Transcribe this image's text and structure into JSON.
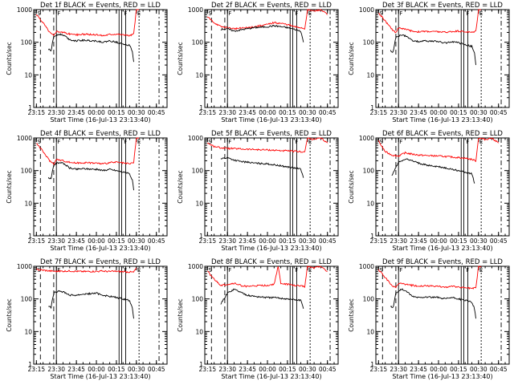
{
  "figure": {
    "ylabel": "Counts/sec",
    "xlabel": "Start Time (16-Jul-13 23:13:40)",
    "x_ticks": [
      "23:15",
      "23:30",
      "23:45",
      "00:00",
      "00:15",
      "00:30",
      "00:45"
    ],
    "y_ticks": [
      "1",
      "10",
      "100",
      "1000"
    ],
    "series_colors": {
      "events": "#000000",
      "lld": "#ff0000"
    }
  },
  "chart_data": [
    {
      "type": "line",
      "title": "Det 1f BLACK = Events, RED = LLD",
      "ylim": [
        1,
        1000
      ],
      "yscale": "log",
      "markers": [
        {
          "label": "S",
          "x": "23:15"
        },
        {
          "label": "F",
          "x": "23:30"
        },
        {
          "label": "F",
          "x": "00:20"
        },
        {
          "label": "E",
          "x": "00:30"
        }
      ],
      "series": [
        {
          "role": "lld",
          "x": [
            "23:15",
            "23:20",
            "23:25",
            "23:28",
            "23:30",
            "23:35",
            "23:40",
            "23:45",
            "23:50",
            "00:00",
            "00:05",
            "00:10",
            "00:15",
            "00:20",
            "00:25",
            "00:28",
            "00:30",
            "00:32"
          ],
          "y": [
            700,
            400,
            200,
            160,
            220,
            200,
            180,
            170,
            175,
            170,
            160,
            175,
            180,
            170,
            160,
            180,
            1000,
            1000
          ]
        },
        {
          "role": "events",
          "x": [
            "23:24",
            "23:26",
            "23:28",
            "23:32",
            "23:36",
            "23:40",
            "23:45",
            "23:50",
            "00:00",
            "00:05",
            "00:10",
            "00:15",
            "00:20",
            "00:25",
            "00:27",
            "00:28"
          ],
          "y": [
            60,
            55,
            150,
            180,
            160,
            120,
            110,
            115,
            110,
            100,
            110,
            100,
            90,
            80,
            50,
            25
          ]
        }
      ]
    },
    {
      "type": "line",
      "title": "Det 2f BLACK = Events, RED = LLD",
      "ylim": [
        1,
        1000
      ],
      "yscale": "log",
      "markers": [
        {
          "label": "S",
          "x": "23:15"
        },
        {
          "label": "F",
          "x": "23:30"
        },
        {
          "label": "F",
          "x": "00:20"
        },
        {
          "label": "E",
          "x": "00:30"
        }
      ],
      "series": [
        {
          "role": "lld",
          "x": [
            "23:15",
            "23:20",
            "23:25",
            "23:30",
            "23:35",
            "23:40",
            "23:45",
            "23:50",
            "00:00",
            "00:05",
            "00:10",
            "00:15",
            "00:20",
            "00:25",
            "00:28",
            "00:30",
            "00:35",
            "00:40",
            "00:45"
          ],
          "y": [
            600,
            400,
            300,
            280,
            260,
            270,
            280,
            300,
            350,
            400,
            380,
            350,
            300,
            280,
            260,
            1000,
            900,
            1000,
            700
          ]
        },
        {
          "role": "events",
          "x": [
            "23:25",
            "23:30",
            "23:35",
            "23:40",
            "23:45",
            "23:50",
            "00:00",
            "00:05",
            "00:10",
            "00:15",
            "00:20",
            "00:25",
            "00:27"
          ],
          "y": [
            250,
            260,
            220,
            240,
            260,
            280,
            300,
            320,
            300,
            280,
            250,
            220,
            100
          ]
        }
      ]
    },
    {
      "type": "line",
      "title": "Det 3f BLACK = Events, RED = LLD",
      "ylim": [
        1,
        1000
      ],
      "yscale": "log",
      "markers": [
        {
          "label": "S",
          "x": "23:15"
        },
        {
          "label": "F",
          "x": "23:30"
        },
        {
          "label": "F",
          "x": "00:20"
        },
        {
          "label": "E",
          "x": "00:30"
        }
      ],
      "series": [
        {
          "role": "lld",
          "x": [
            "23:15",
            "23:20",
            "23:25",
            "23:28",
            "23:30",
            "23:35",
            "23:40",
            "23:45",
            "23:50",
            "00:00",
            "00:05",
            "00:10",
            "00:15",
            "00:20",
            "00:25",
            "00:28",
            "00:30",
            "00:32"
          ],
          "y": [
            800,
            450,
            250,
            200,
            280,
            250,
            220,
            210,
            215,
            210,
            200,
            215,
            220,
            210,
            200,
            220,
            1000,
            1000
          ]
        },
        {
          "role": "events",
          "x": [
            "23:24",
            "23:26",
            "23:28",
            "23:32",
            "23:36",
            "23:40",
            "23:45",
            "23:50",
            "00:00",
            "00:05",
            "00:10",
            "00:15",
            "00:20",
            "00:25",
            "00:27",
            "00:28"
          ],
          "y": [
            55,
            50,
            140,
            170,
            150,
            115,
            105,
            110,
            105,
            95,
            105,
            95,
            85,
            75,
            45,
            20
          ]
        }
      ]
    },
    {
      "type": "line",
      "title": "Det 4f BLACK = Events, RED = LLD",
      "ylim": [
        1,
        1000
      ],
      "yscale": "log",
      "markers": [
        {
          "label": "S",
          "x": "23:15"
        },
        {
          "label": "F",
          "x": "23:30"
        },
        {
          "label": "F",
          "x": "00:20"
        },
        {
          "label": "E",
          "x": "00:30"
        }
      ],
      "series": [
        {
          "role": "lld",
          "x": [
            "23:15",
            "23:20",
            "23:25",
            "23:28",
            "23:30",
            "23:35",
            "23:40",
            "23:45",
            "23:50",
            "00:00",
            "00:05",
            "00:10",
            "00:15",
            "00:20",
            "00:25",
            "00:28",
            "00:30",
            "00:32"
          ],
          "y": [
            700,
            380,
            200,
            160,
            220,
            200,
            180,
            170,
            175,
            170,
            160,
            175,
            180,
            170,
            160,
            180,
            1000,
            1000
          ]
        },
        {
          "role": "events",
          "x": [
            "23:24",
            "23:26",
            "23:28",
            "23:32",
            "23:36",
            "23:40",
            "23:45",
            "23:50",
            "00:00",
            "00:05",
            "00:10",
            "00:15",
            "00:20",
            "00:25",
            "00:27",
            "00:28"
          ],
          "y": [
            60,
            55,
            150,
            180,
            160,
            120,
            110,
            115,
            110,
            100,
            110,
            100,
            90,
            80,
            50,
            25
          ]
        }
      ]
    },
    {
      "type": "line",
      "title": "Det 5f BLACK = Events, RED = LLD",
      "ylim": [
        1,
        1000
      ],
      "yscale": "log",
      "markers": [
        {
          "label": "S",
          "x": "23:15"
        },
        {
          "label": "F",
          "x": "23:30"
        },
        {
          "label": "F",
          "x": "00:20"
        },
        {
          "label": "E",
          "x": "00:30"
        }
      ],
      "series": [
        {
          "role": "lld",
          "x": [
            "23:15",
            "23:20",
            "23:25",
            "23:30",
            "23:35",
            "23:40",
            "23:45",
            "23:50",
            "00:00",
            "00:05",
            "00:10",
            "00:15",
            "00:20",
            "00:25",
            "00:28",
            "00:30",
            "00:35",
            "00:40",
            "00:45"
          ],
          "y": [
            700,
            550,
            500,
            480,
            470,
            460,
            450,
            440,
            430,
            420,
            410,
            400,
            390,
            380,
            370,
            1000,
            900,
            1000,
            700
          ]
        },
        {
          "role": "events",
          "x": [
            "23:25",
            "23:30",
            "23:35",
            "23:40",
            "23:45",
            "23:50",
            "00:00",
            "00:05",
            "00:10",
            "00:15",
            "00:20",
            "00:25",
            "00:27"
          ],
          "y": [
            230,
            250,
            210,
            190,
            180,
            170,
            160,
            150,
            140,
            130,
            120,
            110,
            60
          ]
        }
      ]
    },
    {
      "type": "line",
      "title": "Det 6f BLACK = Events, RED = LLD",
      "ylim": [
        1,
        1000
      ],
      "yscale": "log",
      "markers": [
        {
          "label": "S",
          "x": "23:15"
        },
        {
          "label": "F",
          "x": "23:30"
        },
        {
          "label": "F",
          "x": "00:20"
        },
        {
          "label": "E",
          "x": "00:30"
        }
      ],
      "series": [
        {
          "role": "lld",
          "x": [
            "23:15",
            "23:20",
            "23:25",
            "23:30",
            "23:35",
            "23:40",
            "23:45",
            "23:50",
            "00:00",
            "00:05",
            "00:10",
            "00:15",
            "00:20",
            "00:25",
            "00:28",
            "00:30",
            "00:35",
            "00:40",
            "00:45"
          ],
          "y": [
            800,
            380,
            300,
            280,
            350,
            320,
            300,
            290,
            280,
            270,
            260,
            250,
            240,
            220,
            200,
            1000,
            900,
            1000,
            700
          ]
        },
        {
          "role": "events",
          "x": [
            "23:25",
            "23:30",
            "23:35",
            "23:40",
            "23:45",
            "23:50",
            "00:00",
            "00:05",
            "00:10",
            "00:15",
            "00:20",
            "00:25",
            "00:27"
          ],
          "y": [
            70,
            180,
            230,
            200,
            170,
            150,
            130,
            120,
            110,
            100,
            90,
            80,
            40
          ]
        }
      ]
    },
    {
      "type": "line",
      "title": "Det 7f BLACK = Events, RED = LLD",
      "ylim": [
        1,
        1000
      ],
      "yscale": "log",
      "markers": [
        {
          "label": "S",
          "x": "23:15"
        },
        {
          "label": "F",
          "x": "23:30"
        },
        {
          "label": "F",
          "x": "00:20"
        },
        {
          "label": "E",
          "x": "00:30"
        }
      ],
      "series": [
        {
          "role": "lld",
          "x": [
            "23:15",
            "23:20",
            "23:25",
            "23:30",
            "23:35",
            "23:40",
            "23:45",
            "23:50",
            "00:00",
            "00:05",
            "00:10",
            "00:15",
            "00:20",
            "00:25",
            "00:28",
            "00:30"
          ],
          "y": [
            800,
            760,
            720,
            700,
            710,
            720,
            700,
            690,
            700,
            710,
            690,
            700,
            680,
            670,
            660,
            900
          ]
        },
        {
          "role": "events",
          "x": [
            "23:24",
            "23:26",
            "23:28",
            "23:32",
            "23:36",
            "23:40",
            "23:45",
            "23:50",
            "00:00",
            "00:05",
            "00:10",
            "00:15",
            "00:20",
            "00:25",
            "00:27",
            "00:28"
          ],
          "y": [
            60,
            55,
            150,
            180,
            160,
            130,
            130,
            140,
            150,
            130,
            120,
            110,
            100,
            90,
            50,
            25
          ]
        }
      ]
    },
    {
      "type": "line",
      "title": "Det 8f BLACK = Events, RED = LLD",
      "ylim": [
        1,
        1000
      ],
      "yscale": "log",
      "markers": [
        {
          "label": "S",
          "x": "23:15"
        },
        {
          "label": "F",
          "x": "23:30"
        },
        {
          "label": "F",
          "x": "00:20"
        },
        {
          "label": "E",
          "x": "00:30"
        }
      ],
      "series": [
        {
          "role": "lld",
          "x": [
            "23:15",
            "23:20",
            "23:25",
            "23:30",
            "23:35",
            "23:40",
            "23:45",
            "23:50",
            "00:00",
            "00:05",
            "00:08",
            "00:10",
            "00:15",
            "00:20",
            "00:25",
            "00:28",
            "00:30",
            "00:35",
            "00:40",
            "00:45"
          ],
          "y": [
            700,
            400,
            260,
            280,
            300,
            260,
            240,
            250,
            260,
            280,
            1000,
            300,
            280,
            260,
            250,
            240,
            1000,
            900,
            1000,
            700
          ]
        },
        {
          "role": "events",
          "x": [
            "23:25",
            "23:30",
            "23:35",
            "23:40",
            "23:45",
            "23:50",
            "00:00",
            "00:05",
            "00:10",
            "00:15",
            "00:20",
            "00:25",
            "00:27"
          ],
          "y": [
            70,
            150,
            200,
            160,
            130,
            120,
            110,
            110,
            105,
            100,
            95,
            90,
            50
          ]
        }
      ]
    },
    {
      "type": "line",
      "title": "Det 9f BLACK = Events, RED = LLD",
      "ylim": [
        1,
        1000
      ],
      "yscale": "log",
      "markers": [
        {
          "label": "S",
          "x": "23:15"
        },
        {
          "label": "F",
          "x": "23:30"
        },
        {
          "label": "F",
          "x": "00:20"
        },
        {
          "label": "E",
          "x": "00:30"
        }
      ],
      "series": [
        {
          "role": "lld",
          "x": [
            "23:15",
            "23:20",
            "23:25",
            "23:28",
            "23:30",
            "23:35",
            "23:40",
            "23:45",
            "23:50",
            "00:00",
            "00:05",
            "00:10",
            "00:15",
            "00:20",
            "00:25",
            "00:28",
            "00:30",
            "00:32"
          ],
          "y": [
            800,
            450,
            260,
            220,
            300,
            280,
            260,
            250,
            250,
            240,
            230,
            240,
            230,
            220,
            210,
            220,
            1000,
            1000
          ]
        },
        {
          "role": "events",
          "x": [
            "23:24",
            "23:26",
            "23:28",
            "23:32",
            "23:36",
            "23:40",
            "23:45",
            "23:50",
            "00:00",
            "00:05",
            "00:10",
            "00:15",
            "00:20",
            "00:25",
            "00:27",
            "00:28"
          ],
          "y": [
            60,
            55,
            150,
            200,
            170,
            120,
            110,
            115,
            110,
            100,
            110,
            100,
            90,
            80,
            50,
            25
          ]
        }
      ]
    }
  ]
}
